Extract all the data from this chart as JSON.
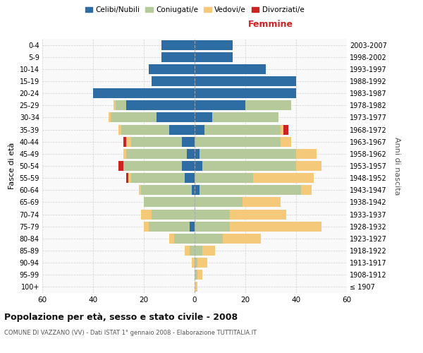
{
  "age_groups": [
    "100+",
    "95-99",
    "90-94",
    "85-89",
    "80-84",
    "75-79",
    "70-74",
    "65-69",
    "60-64",
    "55-59",
    "50-54",
    "45-49",
    "40-44",
    "35-39",
    "30-34",
    "25-29",
    "20-24",
    "15-19",
    "10-14",
    "5-9",
    "0-4"
  ],
  "birth_years": [
    "≤ 1907",
    "1908-1912",
    "1913-1917",
    "1918-1922",
    "1923-1927",
    "1928-1932",
    "1933-1937",
    "1938-1942",
    "1943-1947",
    "1948-1952",
    "1953-1957",
    "1958-1962",
    "1963-1967",
    "1968-1972",
    "1973-1977",
    "1978-1982",
    "1983-1987",
    "1988-1992",
    "1993-1997",
    "1998-2002",
    "2003-2007"
  ],
  "male": {
    "celibi": [
      0,
      0,
      0,
      0,
      0,
      2,
      0,
      0,
      1,
      4,
      5,
      3,
      5,
      10,
      15,
      27,
      40,
      17,
      18,
      13,
      13
    ],
    "coniugati": [
      0,
      0,
      0,
      2,
      8,
      16,
      17,
      20,
      20,
      21,
      23,
      24,
      20,
      19,
      18,
      4,
      0,
      0,
      0,
      0,
      0
    ],
    "vedovi": [
      0,
      0,
      1,
      2,
      2,
      2,
      4,
      0,
      1,
      1,
      0,
      1,
      2,
      1,
      1,
      1,
      0,
      0,
      0,
      0,
      0
    ],
    "divorziati": [
      0,
      0,
      0,
      0,
      0,
      0,
      0,
      0,
      0,
      1,
      2,
      0,
      1,
      0,
      0,
      0,
      0,
      0,
      0,
      0,
      0
    ]
  },
  "female": {
    "nubili": [
      0,
      0,
      0,
      0,
      0,
      0,
      0,
      0,
      2,
      0,
      3,
      2,
      0,
      4,
      7,
      20,
      40,
      40,
      28,
      15,
      15
    ],
    "coniugate": [
      0,
      1,
      1,
      3,
      11,
      14,
      14,
      19,
      40,
      23,
      37,
      38,
      34,
      30,
      26,
      18,
      0,
      0,
      0,
      0,
      0
    ],
    "vedove": [
      1,
      2,
      4,
      5,
      15,
      36,
      22,
      15,
      4,
      24,
      10,
      8,
      4,
      1,
      0,
      0,
      0,
      0,
      0,
      0,
      0
    ],
    "divorziate": [
      0,
      0,
      0,
      0,
      0,
      0,
      0,
      0,
      0,
      0,
      0,
      0,
      0,
      2,
      0,
      0,
      0,
      0,
      0,
      0,
      0
    ]
  },
  "colors": {
    "celibi": "#2e6ca4",
    "coniugati": "#b5c99a",
    "vedovi": "#f5c97a",
    "divorziati": "#cc2222"
  },
  "xlabel_right": "Femmine",
  "ylabel_left": "Fasce di età",
  "ylabel_right": "Anni di nascita",
  "title": "Popolazione per età, sesso e stato civile - 2008",
  "subtitle": "COMUNE DI VAZZANO (VV) - Dati ISTAT 1° gennaio 2008 - Elaborazione TUTTITALIA.IT",
  "legend_labels": [
    "Celibi/Nubili",
    "Coniugati/e",
    "Vedovi/e",
    "Divorziati/e"
  ],
  "xlim": 60,
  "bg_color": "#f9f9f9",
  "grid_color": "#cccccc"
}
